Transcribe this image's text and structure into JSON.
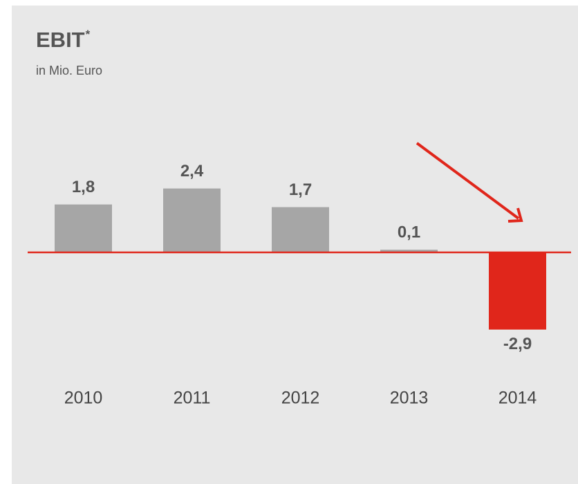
{
  "chart_data": {
    "type": "bar",
    "title": "EBIT",
    "title_marker": "*",
    "subtitle": "in Mio. Euro",
    "categories": [
      "2010",
      "2011",
      "2012",
      "2013",
      "2014"
    ],
    "values": [
      1.8,
      2.4,
      1.7,
      0.1,
      -2.9
    ],
    "value_labels": [
      "1,8",
      "2,4",
      "1,7",
      "0,1",
      "-2,9"
    ],
    "colors": [
      "#a6a6a6",
      "#a6a6a6",
      "#a6a6a6",
      "#a6a6a6",
      "#e0261b"
    ],
    "ylim": [
      -4,
      4
    ]
  }
}
